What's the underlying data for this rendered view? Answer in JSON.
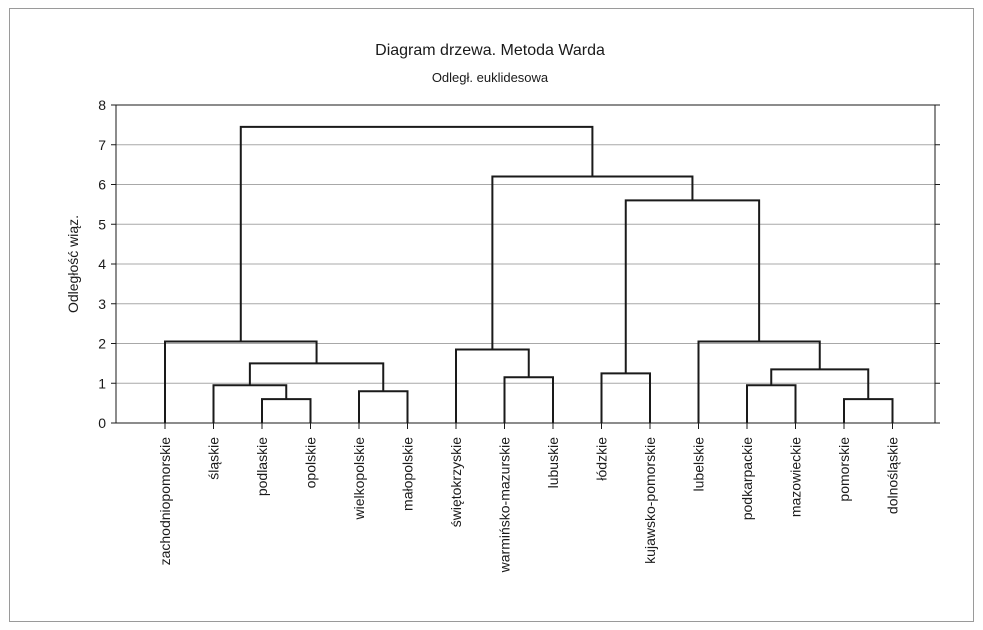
{
  "chart_data": {
    "type": "dendrogram",
    "title": "Diagram drzewa. Metoda Warda",
    "subtitle": "Odległ. euklidesowa",
    "ylabel": "Odległość wiąz.",
    "ylim": [
      0,
      8
    ],
    "yticks": [
      0,
      1,
      2,
      3,
      4,
      5,
      6,
      7,
      8
    ],
    "grid": true,
    "leaves": [
      "zachodniopomorskie",
      "śląskie",
      "podlaskie",
      "opolskie",
      "wielkopolskie",
      "małopolskie",
      "świętokrzyskie",
      "warmińsko-mazurskie",
      "lubuskie",
      "łódzkie",
      "kujawsko-pomorskie",
      "lubelskie",
      "podkarpackie",
      "mazowieckie",
      "pomorskie",
      "dolnośląskie"
    ],
    "merges": [
      {
        "left": "podlaskie",
        "right": "opolskie",
        "height": 0.6
      },
      {
        "left": "pomorskie",
        "right": "dolnośląskie",
        "height": 0.6
      },
      {
        "left": "wielkopolskie",
        "right": "małopolskie",
        "height": 0.8
      },
      {
        "left": "śląskie",
        "right": "C1",
        "height": 0.95
      },
      {
        "left": "podkarpackie",
        "right": "mazowieckie",
        "height": 0.95
      },
      {
        "left": "warmińsko-mazurskie",
        "right": "lubuskie",
        "height": 1.15
      },
      {
        "left": "łódzkie",
        "right": "kujawsko-pomorskie",
        "height": 1.25
      },
      {
        "left": "C5",
        "right": "C2",
        "height": 1.35
      },
      {
        "left": "C4",
        "right": "C3",
        "height": 1.5
      },
      {
        "left": "świętokrzyskie",
        "right": "C6",
        "height": 1.85
      },
      {
        "left": "zachodniopomorskie",
        "right": "C9",
        "height": 2.05
      },
      {
        "left": "lubelskie",
        "right": "C8",
        "height": 2.05
      },
      {
        "left": "C7",
        "right": "C12",
        "height": 5.6
      },
      {
        "left": "C10",
        "right": "C13",
        "height": 6.2
      },
      {
        "left": "C11",
        "right": "C14",
        "height": 7.45
      }
    ]
  }
}
